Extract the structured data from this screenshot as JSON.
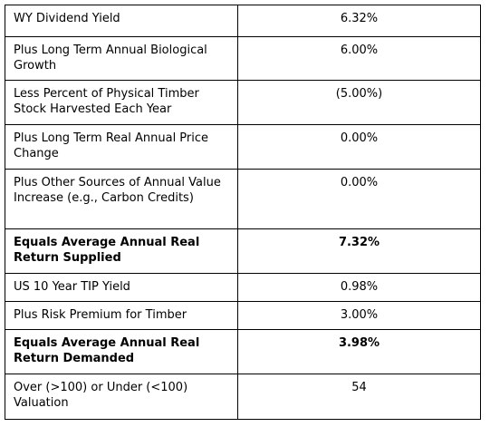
{
  "table": {
    "rows": [
      {
        "label": "WY Dividend Yield",
        "value": "6.32%",
        "bold": false
      },
      {
        "label": "Plus Long Term Annual Biological Growth",
        "value": "6.00%",
        "bold": false
      },
      {
        "label": "Less Percent of Physical Timber Stock Harvested Each Year",
        "value": "(5.00%)",
        "bold": false
      },
      {
        "label": "Plus Long Term Real Annual Price Change",
        "value": "0.00%",
        "bold": false
      },
      {
        "label": "Plus Other Sources of Annual Value Increase (e.g., Carbon Credits)",
        "value": "0.00%",
        "bold": false
      },
      {
        "label": "Equals Average Annual Real Return Supplied",
        "value": "7.32%",
        "bold": true
      },
      {
        "label": "US 10 Year TIP Yield",
        "value": "0.98%",
        "bold": false
      },
      {
        "label": "Plus Risk Premium for Timber",
        "value": "3.00%",
        "bold": false
      },
      {
        "label": "Equals Average Annual Real Return Demanded",
        "value": "3.98%",
        "bold": true
      },
      {
        "label": "Over (>100) or Under (<100) Valuation",
        "value": "54",
        "bold": false
      }
    ]
  }
}
